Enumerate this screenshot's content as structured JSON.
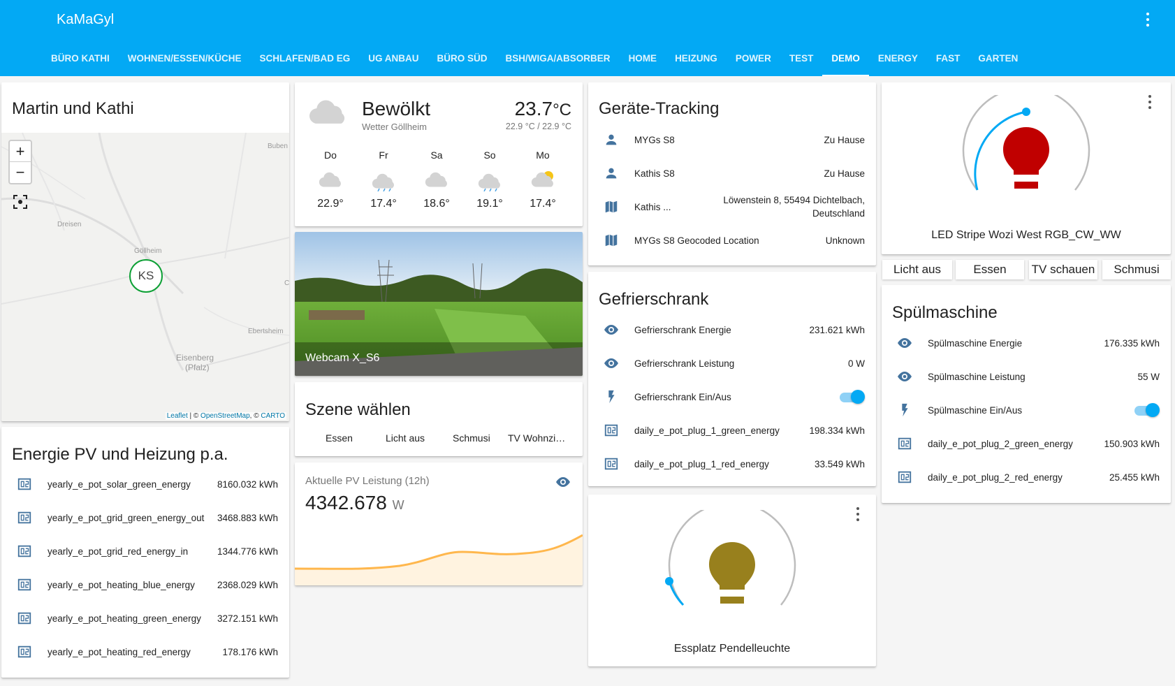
{
  "app": {
    "title": "KaMaGyl"
  },
  "tabs": [
    "BÜRO KATHI",
    "WOHNEN/ESSEN/KÜCHE",
    "SCHLAFEN/BAD EG",
    "UG ANBAU",
    "BÜRO SÜD",
    "BSH/WIGA/ABSORBER",
    "HOME",
    "HEIZUNG",
    "POWER",
    "TEST",
    "DEMO",
    "ENERGY",
    "FAST",
    "GARTEN"
  ],
  "active_tab": "DEMO",
  "map_card": {
    "title": "Martin und Kathi",
    "labels": {
      "buben": "Buben",
      "dreisen": "Dreisen",
      "gollheim": "Göllheim",
      "ebertsheim": "Ebertsheim",
      "eisenberg": "Eisenberg",
      "pfalz": "(Pfalz)"
    },
    "marker": "KS",
    "zoom_in": "+",
    "zoom_out": "−",
    "attribution": {
      "leaflet": "Leaflet",
      "sep1": " | © ",
      "osm": "OpenStreetMap",
      "sep2": ", © ",
      "carto": "CARTO"
    }
  },
  "weather": {
    "condition": "Bewölkt",
    "subtitle": "Wetter Göllheim",
    "temp": "23.7",
    "unit": "°C",
    "range": "22.9 °C / 22.9 °C",
    "forecast": [
      {
        "day": "Do",
        "temp": "22.9°",
        "icon": "cloudy-icon"
      },
      {
        "day": "Fr",
        "temp": "17.4°",
        "icon": "rainy-icon"
      },
      {
        "day": "Sa",
        "temp": "18.6°",
        "icon": "cloudy-icon"
      },
      {
        "day": "So",
        "temp": "19.1°",
        "icon": "rainy-icon"
      },
      {
        "day": "Mo",
        "temp": "17.4°",
        "icon": "partly-cloudy-icon"
      }
    ]
  },
  "webcam": {
    "label": "Webcam X_S6"
  },
  "scenes": {
    "title": "Szene wählen",
    "buttons": [
      "Essen",
      "Licht aus",
      "Schmusi",
      "TV Wohnzi…"
    ]
  },
  "pv_graph": {
    "title": "Aktuelle PV Leistung (12h)",
    "value": "4342.678",
    "unit": "W",
    "line_color": "#ffb74d"
  },
  "energy": {
    "title": "Energie PV und Heizung p.a.",
    "rows": [
      {
        "name": "yearly_e_pot_solar_green_energy",
        "value": "8160.032 kWh"
      },
      {
        "name": "yearly_e_pot_grid_green_energy_out",
        "value": "3468.883 kWh"
      },
      {
        "name": "yearly_e_pot_grid_red_energy_in",
        "value": "1344.776 kWh"
      },
      {
        "name": "yearly_e_pot_heating_blue_energy",
        "value": "2368.029 kWh"
      },
      {
        "name": "yearly_e_pot_heating_green_energy",
        "value": "3272.151 kWh"
      },
      {
        "name": "yearly_e_pot_heating_red_energy",
        "value": "178.176 kWh"
      }
    ]
  },
  "tracking": {
    "title": "Geräte-Tracking",
    "rows": [
      {
        "name": "MYGs S8",
        "value": "Zu Hause",
        "icon": "person-icon"
      },
      {
        "name": "Kathis S8",
        "value": "Zu Hause",
        "icon": "person-icon"
      },
      {
        "name": "Kathis ...",
        "value1": "Löwenstein 8, 55494 Dichtelbach,",
        "value2": "Deutschland",
        "icon": "map-icon"
      },
      {
        "name": "MYGs S8 Geocoded Location",
        "value": "Unknown",
        "icon": "map-icon"
      }
    ]
  },
  "freezer": {
    "title": "Gefrierschrank",
    "rows": [
      {
        "name": "Gefrierschrank Energie",
        "value": "231.621 kWh"
      },
      {
        "name": "Gefrierschrank Leistung",
        "value": "0 W"
      },
      {
        "name": "Gefrierschrank Ein/Aus"
      },
      {
        "name": "daily_e_pot_plug_1_green_energy",
        "value": "198.334 kWh"
      },
      {
        "name": "daily_e_pot_plug_1_red_energy",
        "value": "33.549 kWh"
      }
    ]
  },
  "light_essplatz": {
    "name": "Essplatz Pendelleuchte",
    "color": "#98801d"
  },
  "light_led": {
    "name": "LED Stripe Wozi West RGB_CW_WW",
    "color": "#c00000"
  },
  "led_buttons": [
    "Licht aus",
    "Essen",
    "TV schauen",
    "Schmusi"
  ],
  "dishwasher": {
    "title": "Spülmaschine",
    "rows": [
      {
        "name": "Spülmaschine Energie",
        "value": "176.335 kWh"
      },
      {
        "name": "Spülmaschine Leistung",
        "value": "55 W"
      },
      {
        "name": "Spülmaschine Ein/Aus"
      },
      {
        "name": "daily_e_pot_plug_2_green_energy",
        "value": "150.903 kWh"
      },
      {
        "name": "daily_e_pot_plug_2_red_energy",
        "value": "25.455 kWh"
      }
    ]
  },
  "colors": {
    "primary": "#03a9f4",
    "icon": "#44739e"
  }
}
